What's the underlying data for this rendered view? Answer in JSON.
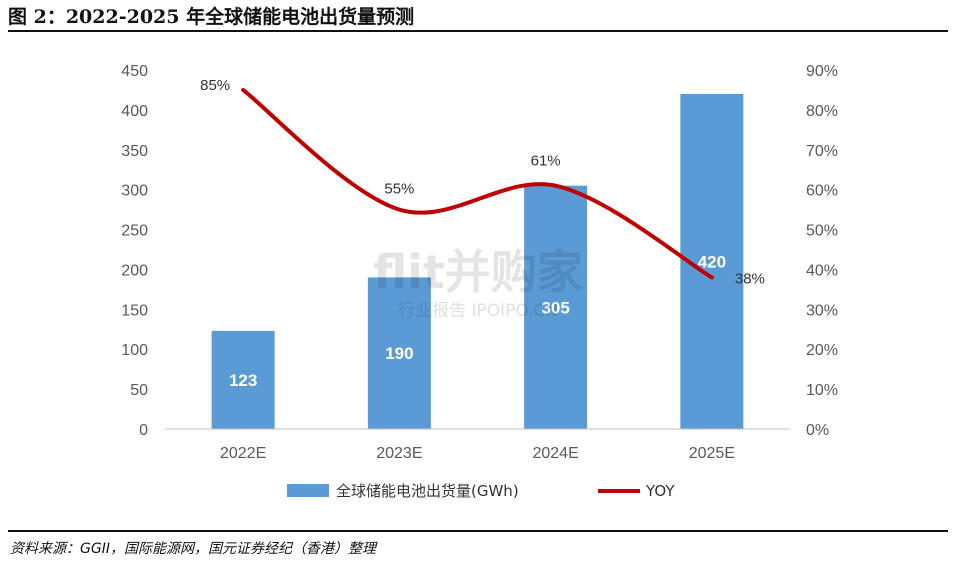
{
  "title": "图 2：2022-2025 年全球储能电池出货量预测",
  "source": "资料来源：GGII，国际能源网，国元证券经纪（香港）整理",
  "watermark": {
    "brand": "flit并购家",
    "tagline": "行业报告 IPOIPO.CN"
  },
  "chart_data": {
    "type": "bar",
    "categories": [
      "2022E",
      "2023E",
      "2024E",
      "2025E"
    ],
    "series": [
      {
        "name": "全球储能电池出货量(GWh)",
        "type": "bar",
        "axis": "left",
        "color": "#5B9BD5",
        "values": [
          123,
          190,
          305,
          420
        ],
        "labels": [
          "123",
          "190",
          "305",
          "420"
        ]
      },
      {
        "name": "YOY",
        "type": "line",
        "axis": "right",
        "color": "#C00000",
        "values": [
          85,
          55,
          61,
          38
        ],
        "labels": [
          "85%",
          "55%",
          "61%",
          "38%"
        ]
      }
    ],
    "y_left": {
      "min": 0,
      "max": 450,
      "ticks": [
        "0",
        "50",
        "100",
        "150",
        "200",
        "250",
        "300",
        "350",
        "400",
        "450"
      ]
    },
    "y_right": {
      "min": 0,
      "max": 90,
      "ticks": [
        "0%",
        "10%",
        "20%",
        "30%",
        "40%",
        "50%",
        "60%",
        "70%",
        "80%",
        "90%"
      ]
    },
    "grid": false,
    "legend_position": "bottom"
  }
}
